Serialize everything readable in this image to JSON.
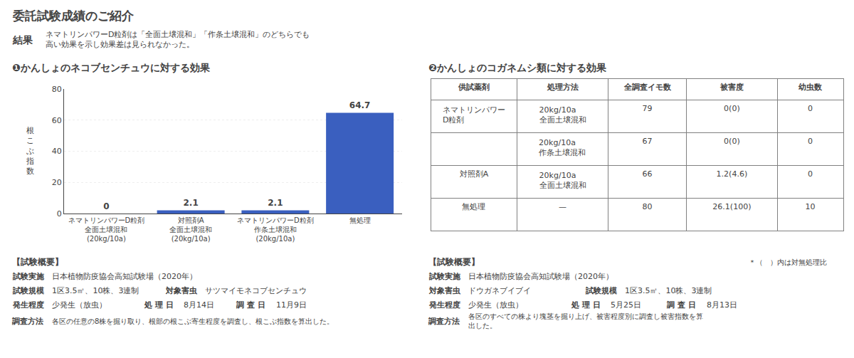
{
  "chart_data": [
    {
      "type": "bar",
      "title": "❶かんしょのネコブセンチュウに対する効果",
      "ylabel": "根\nこ\nぶ\n指\n数",
      "categories": [
        "ネマトリンパワーD粒剤\n全面土壌混和\n(20kg/10a)",
        "対照剤A\n全面土壌混和\n(20kg/10a)",
        "ネマトリンパワーD粒剤\n作条土壌混和\n(20kg/10a)",
        "無処理"
      ],
      "values": [
        0,
        2.1,
        2.1,
        64.7
      ],
      "color": "#3a5fbf",
      "ylim": [
        0,
        80
      ],
      "yticks": [
        0,
        20,
        40,
        60,
        80
      ],
      "grid": true,
      "data_labels": true,
      "annotations": [
        [
          "委託試験成績のご紹介"
        ],
        [
          "結果",
          "ネマトリンパワーD粒剤は「全面土壌混和」「作条土壌混和」のどちらでも\n高い効果を示し効果差は見られなかった。"
        ],
        [
          "【試験概要】"
        ],
        [
          "試験実施",
          "日本植物防疫協会高知試験場（2020年）"
        ],
        [
          "試験規模",
          "1区3.5㎡、10株、3連制",
          "対象害虫",
          "サツマイモネコブセンチュウ"
        ],
        [
          "発生程度",
          "少発生（放虫）",
          "処 理 日",
          "8月14日",
          "調 査 日",
          "11月9日"
        ],
        [
          "調査方法",
          "各区の任意の8株を掘り取り、根部の根こぶ寄生程度を調査し、根こぶ指数を算出した。"
        ]
      ]
    },
    {
      "type": "table",
      "title": "❷かんしょのコガネムシ類に対する効果",
      "columns": [
        "供試薬剤",
        "処理方法",
        "全調査イモ数",
        "被害度",
        "幼虫数"
      ],
      "rows": [
        [
          "ネマトリンパワー\nD粒剤",
          "20kg/10a\n全面土壌混和",
          "79",
          "0(0)",
          "0"
        ],
        [
          null,
          "20kg/10a\n作条土壌混和",
          "67",
          "0(0)",
          "0"
        ],
        [
          "対照剤A",
          "20kg/10a\n全面土壌混和",
          "66",
          "1.2(4.6)",
          "0"
        ],
        [
          "無処理",
          "—",
          "80",
          "26.1(100)",
          "10"
        ]
      ],
      "annotations": [
        [
          "【試験概要】",
          "＊（　）内は対無処理比"
        ],
        [
          "試験実施",
          "日本植物防疫協会高知試験場（2020年）"
        ],
        [
          "対象害虫",
          "ドウガネブイブイ",
          "試験規模",
          "1区3.5㎡、10株、3連制"
        ],
        [
          "発生程度",
          "少発生（放虫）",
          "処 理 日",
          "5月25日",
          "調 査 日",
          "8月13日"
        ],
        [
          "調査方法",
          "各区のすべての株より塊茎を掘り上げ、被害程度別に調査し被害指数を算\n出した。"
        ]
      ]
    }
  ]
}
